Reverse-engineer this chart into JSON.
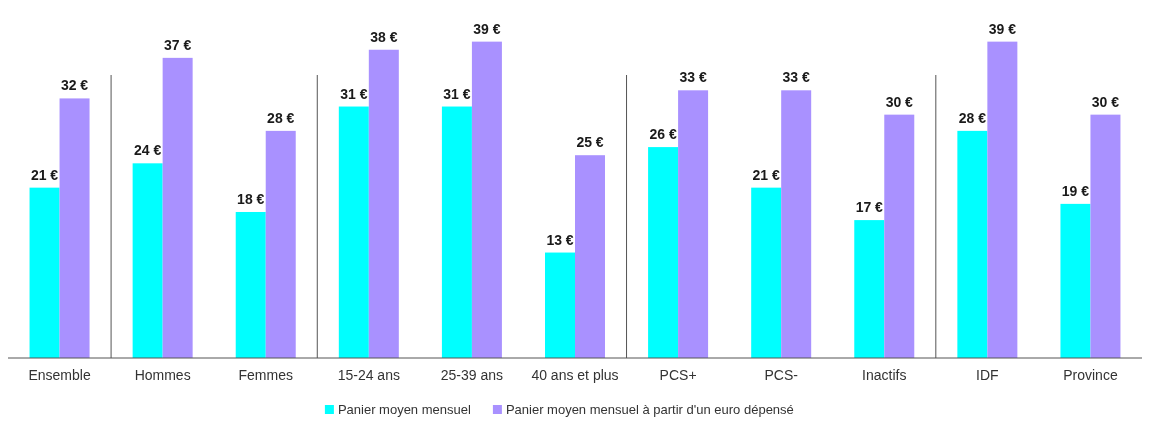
{
  "chart_data": {
    "type": "bar",
    "categories": [
      "Ensemble",
      "Hommes",
      "Femmes",
      "15-24 ans",
      "25-39 ans",
      "40 ans et plus",
      "PCS+",
      "PCS-",
      "Inactifs",
      "IDF",
      "Province"
    ],
    "series": [
      {
        "name": "Panier moyen mensuel",
        "color": "#00ffff",
        "values": [
          21,
          24,
          18,
          31,
          31,
          13,
          26,
          21,
          17,
          28,
          19
        ],
        "value_labels": [
          "21 €",
          "24 €",
          "18 €",
          "31 €",
          "31 €",
          "13 €",
          "26 €",
          "21 €",
          "17 €",
          "28 €",
          "19 €"
        ]
      },
      {
        "name": "Panier moyen mensuel à partir d'un euro dépensé",
        "color": "#a991ff",
        "values": [
          32,
          37,
          28,
          38,
          39,
          25,
          33,
          33,
          30,
          39,
          30
        ],
        "value_labels": [
          "32 €",
          "37 €",
          "28 €",
          "38 €",
          "39 €",
          "25 €",
          "33 €",
          "33 €",
          "30 €",
          "39 €",
          "30 €"
        ]
      }
    ],
    "legend": "bottom",
    "grid": false
  }
}
